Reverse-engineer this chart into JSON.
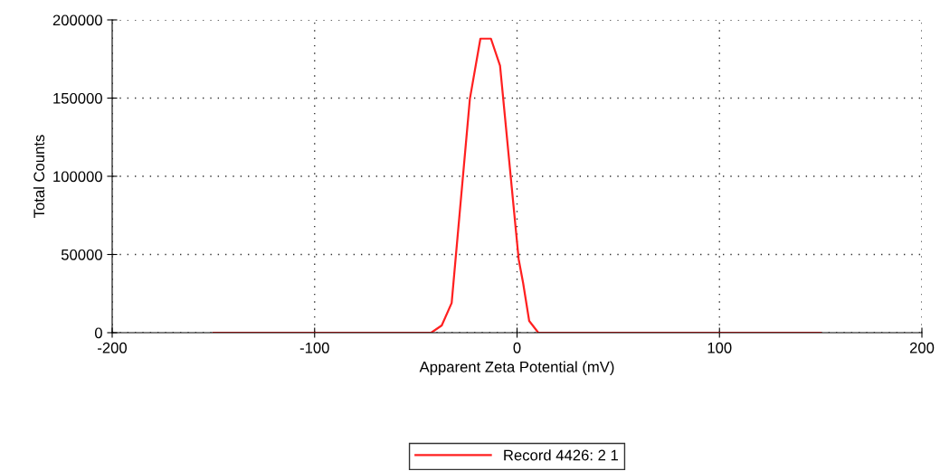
{
  "chart_data": {
    "type": "line",
    "xlabel": "Apparent Zeta Potential (mV)",
    "ylabel": "Total Counts",
    "xlim": [
      -200,
      200
    ],
    "xticks": [
      -200,
      -100,
      0,
      100,
      200
    ],
    "ylim": [
      0,
      200000
    ],
    "yticks": [
      0,
      50000,
      100000,
      150000,
      200000
    ],
    "grid": true,
    "legend": "bottom",
    "line_style": "solid",
    "marker": "none",
    "series": [
      {
        "name": "Record 4426: 2 1",
        "color": "#ff2020",
        "x": [
          -150,
          -42.4,
          -37.2,
          -32.3,
          -23.3,
          -18.1,
          -12.9,
          -8.4,
          0.8,
          3.0,
          6.0,
          10.5,
          150
        ],
        "values": [
          0,
          0,
          4600,
          19000,
          149500,
          188000,
          188000,
          170700,
          47000,
          31800,
          7500,
          0,
          0
        ]
      }
    ]
  }
}
